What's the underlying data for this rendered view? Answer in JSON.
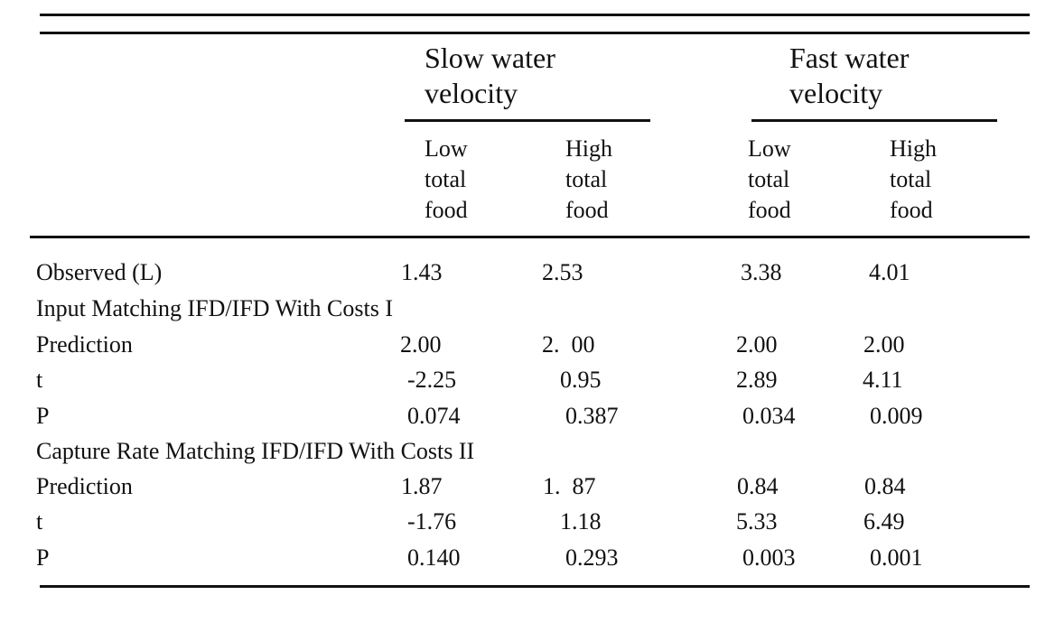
{
  "table": {
    "groups": [
      {
        "title": "Slow water\nvelocity"
      },
      {
        "title": "Fast water\nvelocity"
      }
    ],
    "subheaders": [
      "Low\ntotal\nfood",
      "High\ntotal\nfood",
      "Low\ntotal\nfood",
      "High\ntotal\nfood"
    ],
    "rows": [
      {
        "type": "data",
        "label": "Observed (L)",
        "values": [
          "1.43",
          "2.53",
          "3.38",
          "4.01"
        ]
      },
      {
        "type": "section",
        "label": "Input Matching IFD/IFD With Costs I"
      },
      {
        "type": "data",
        "label": "Prediction",
        "values": [
          "2.00",
          "2.  00",
          "2.00",
          "2.00"
        ]
      },
      {
        "type": "data",
        "label": "t",
        "values": [
          "-2.25",
          "0.95",
          "2.89",
          "4.11"
        ]
      },
      {
        "type": "data",
        "label": "P",
        "values": [
          "0.074",
          "0.387",
          "0.034",
          "0.009"
        ]
      },
      {
        "type": "section",
        "label": "Capture Rate Matching IFD/IFD With Costs II"
      },
      {
        "type": "data",
        "label": "Prediction",
        "values": [
          "1.87",
          "1.  87",
          "0.84",
          "0.84"
        ]
      },
      {
        "type": "data",
        "label": "t",
        "values": [
          "-1.76",
          "1.18",
          "5.33",
          "6.49"
        ]
      },
      {
        "type": "data",
        "label": "P",
        "values": [
          "0.140",
          "0.293",
          "0.003",
          "0.001"
        ]
      }
    ]
  }
}
